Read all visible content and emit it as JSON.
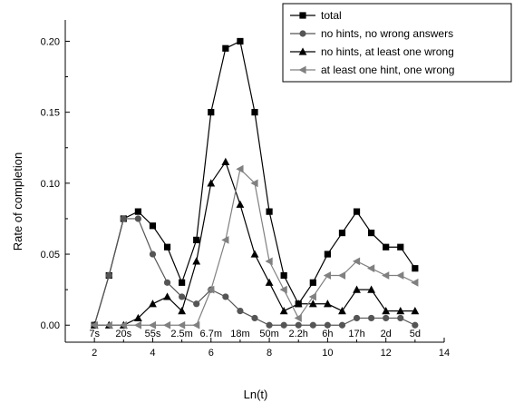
{
  "chart_data": {
    "type": "line",
    "xlabel": "Ln(t)",
    "ylabel": "Rate of completion",
    "xlim": [
      1,
      14
    ],
    "ylim": [
      -0.012,
      0.215
    ],
    "x_ticks": [
      2,
      4,
      6,
      8,
      10,
      12,
      14
    ],
    "y_ticks": [
      "0.00",
      "0.05",
      "0.10",
      "0.15",
      "0.20"
    ],
    "y_tick_values": [
      0,
      0.05,
      0.1,
      0.15,
      0.2
    ],
    "time_labels": [
      {
        "x": 2,
        "label": "7s"
      },
      {
        "x": 3,
        "label": "20s"
      },
      {
        "x": 4,
        "label": "55s"
      },
      {
        "x": 5,
        "label": "2.5m"
      },
      {
        "x": 6,
        "label": "6.7m"
      },
      {
        "x": 7,
        "label": "18m"
      },
      {
        "x": 8,
        "label": "50m"
      },
      {
        "x": 9,
        "label": "2.2h"
      },
      {
        "x": 10,
        "label": "6h"
      },
      {
        "x": 11,
        "label": "17h"
      },
      {
        "x": 12,
        "label": "2d"
      },
      {
        "x": 13,
        "label": "5d"
      }
    ],
    "grid": false,
    "legend_position": "top-right",
    "x": [
      2,
      2.5,
      3,
      3.5,
      4,
      4.5,
      5,
      5.5,
      6,
      6.5,
      7,
      7.5,
      8,
      8.5,
      9,
      9.5,
      10,
      10.5,
      11,
      11.5,
      12,
      12.5,
      13
    ],
    "series": [
      {
        "name": "total",
        "marker": "square",
        "color": "#000000",
        "values": [
          0,
          0.035,
          0.075,
          0.08,
          0.07,
          0.055,
          0.03,
          0.06,
          0.15,
          0.195,
          0.2,
          0.15,
          0.08,
          0.035,
          0.015,
          0.03,
          0.05,
          0.065,
          0.08,
          0.065,
          0.055,
          0.055,
          0.04
        ]
      },
      {
        "name": "no hints, no wrong answers",
        "marker": "circle",
        "color": "#555555",
        "values": [
          0,
          0.035,
          0.075,
          0.075,
          0.05,
          0.03,
          0.02,
          0.015,
          0.025,
          0.02,
          0.01,
          0.005,
          0,
          0,
          0,
          0,
          0,
          0,
          0.005,
          0.005,
          0.005,
          0.005,
          0
        ]
      },
      {
        "name": "no hints, at least one wrong",
        "marker": "triangle-up",
        "color": "#000000",
        "values": [
          0,
          0,
          0,
          0.005,
          0.015,
          0.02,
          0.01,
          0.045,
          0.1,
          0.115,
          0.085,
          0.05,
          0.03,
          0.01,
          0.015,
          0.015,
          0.015,
          0.01,
          0.025,
          0.025,
          0.01,
          0.01,
          0.01
        ]
      },
      {
        "name": "at least one hint, one wrong",
        "marker": "triangle-left",
        "color": "#808080",
        "values": [
          0,
          0,
          0,
          0,
          0,
          0,
          0,
          0,
          0.025,
          0.06,
          0.11,
          0.1,
          0.045,
          0.025,
          0.005,
          0.02,
          0.035,
          0.035,
          0.045,
          0.04,
          0.035,
          0.035,
          0.03
        ]
      }
    ]
  }
}
